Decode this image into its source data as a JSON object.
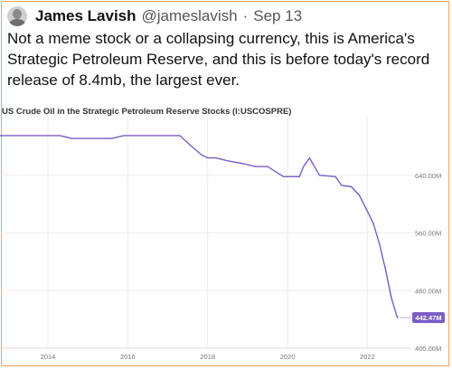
{
  "tweet": {
    "author_name": "James Lavish",
    "handle": "@jameslavish",
    "separator": "·",
    "date": "Sep 13",
    "text": "Not a meme stock or a collapsing currency, this is America's Strategic Petroleum Reserve, and this is before today's record release of 8.4mb, the largest ever."
  },
  "chart_data": {
    "type": "line",
    "title": "US Crude Oil in the Strategic Petroleum Reserve Stocks (I:USCOSPRE)",
    "x": [
      2012.8,
      2014.3,
      2014.6,
      2015.6,
      2015.9,
      2017.3,
      2017.6,
      2017.85,
      2018.0,
      2018.2,
      2018.5,
      2018.9,
      2019.2,
      2019.5,
      2019.9,
      2020.3,
      2020.4,
      2020.55,
      2020.8,
      2021.2,
      2021.35,
      2021.6,
      2021.8,
      2022.0,
      2022.15,
      2022.3,
      2022.45,
      2022.6,
      2022.75
    ],
    "y": [
      695,
      695,
      691,
      691,
      695,
      695,
      680,
      668,
      664,
      664,
      660,
      656,
      652,
      652,
      638,
      638,
      652,
      664,
      640,
      638,
      626,
      624,
      612,
      590,
      573,
      545,
      510,
      470,
      442.47
    ],
    "color": "#7b5cc8",
    "last_value_label": "442.47M",
    "ylim": [
      400,
      720
    ],
    "xlim": [
      2012.8,
      2023.1
    ],
    "x_ticks": [
      2014,
      2016,
      2018,
      2020,
      2022
    ],
    "x_tick_labels": [
      "2014",
      "2016",
      "2018",
      "2020",
      "2022"
    ],
    "y_ticks": [
      400,
      480,
      560,
      640
    ],
    "y_tick_labels": [
      "400.00M",
      "480.00M",
      "560.00M",
      "640.00M"
    ],
    "grid": true
  }
}
